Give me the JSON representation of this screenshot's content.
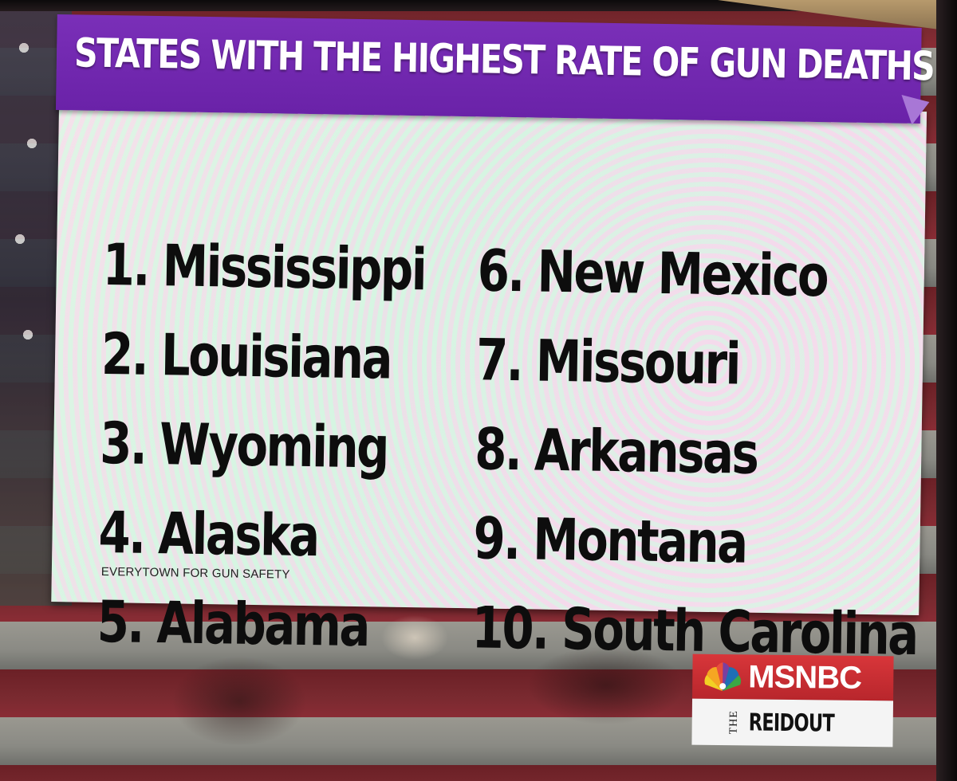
{
  "graphic": {
    "title": "STATES WITH THE HIGHEST RATE OF GUN DEATHS",
    "left_column": [
      "1. Mississippi",
      "2. Louisiana",
      "3. Wyoming",
      "4. Alaska",
      "5. Alabama"
    ],
    "right_column": [
      "6. New Mexico",
      "7. Missouri",
      "8. Arkansas",
      "9. Montana",
      "10. South Carolina"
    ],
    "source": "EVERYTOWN FOR GUN SAFETY"
  },
  "bug": {
    "network": "MSNBC",
    "show_prefix": "THE",
    "show_name": "REIDOUT",
    "icon": "peacock-icon"
  },
  "colors": {
    "title_bar": "#6a22a8",
    "panel": "#eef2ee",
    "bug_red": "#c42a30"
  }
}
